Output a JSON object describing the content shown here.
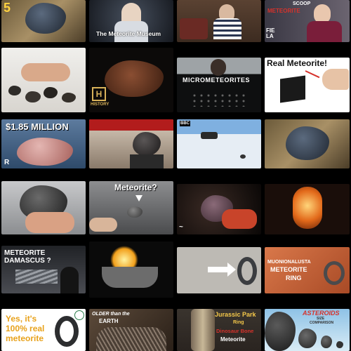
{
  "grid": {
    "tiles": [
      {
        "id": "r1c1",
        "caption": "5"
      },
      {
        "id": "r1c2",
        "caption": "The Meteorite Museum"
      },
      {
        "id": "r1c3",
        "caption": ""
      },
      {
        "id": "r1c4",
        "caption": "METEORITE",
        "caption2": "SCOOP",
        "caption3": "FIE LA"
      },
      {
        "id": "r2c1",
        "caption": ""
      },
      {
        "id": "r2c2",
        "caption": "HISTORY"
      },
      {
        "id": "r2c3",
        "caption": "MICROMETEORITES"
      },
      {
        "id": "r2c4",
        "caption": "Real Meteorite!"
      },
      {
        "id": "r3c1",
        "caption": "$1.85 MILLION"
      },
      {
        "id": "r3c2",
        "caption": ""
      },
      {
        "id": "r3c3",
        "caption": ""
      },
      {
        "id": "r3c4",
        "caption": ""
      },
      {
        "id": "r4c1",
        "caption": ""
      },
      {
        "id": "r4c2",
        "caption": "Meteorite?"
      },
      {
        "id": "r4c3",
        "caption": ""
      },
      {
        "id": "r4c4",
        "caption": ""
      },
      {
        "id": "r5c1",
        "caption": "METEORITE DAMASCUS ?"
      },
      {
        "id": "r5c2",
        "caption": ""
      },
      {
        "id": "r5c3",
        "caption": ""
      },
      {
        "id": "r5c4",
        "caption": "MUONIONALUSTA",
        "caption2": "METEORITE",
        "caption3": "RING"
      },
      {
        "id": "r6c1",
        "caption": "Yes, it's",
        "caption2": "100% real",
        "caption3": "meteorite"
      },
      {
        "id": "r6c2",
        "caption": "OLDER than the",
        "caption2": "EARTH"
      },
      {
        "id": "r6c3",
        "caption": "Jurassic Park",
        "caption2": "Ring",
        "caption3": "Dinosaur Bone",
        "caption4": "Meteorite"
      },
      {
        "id": "r6c4",
        "caption": "ASTEROIDS",
        "caption2": "SIZE",
        "caption3": "COMPARISON"
      }
    ]
  },
  "colors": {
    "background": "#000000",
    "accent_yellow": "#ffd23f",
    "accent_red": "#d6322b",
    "text_white": "#ffffff"
  }
}
